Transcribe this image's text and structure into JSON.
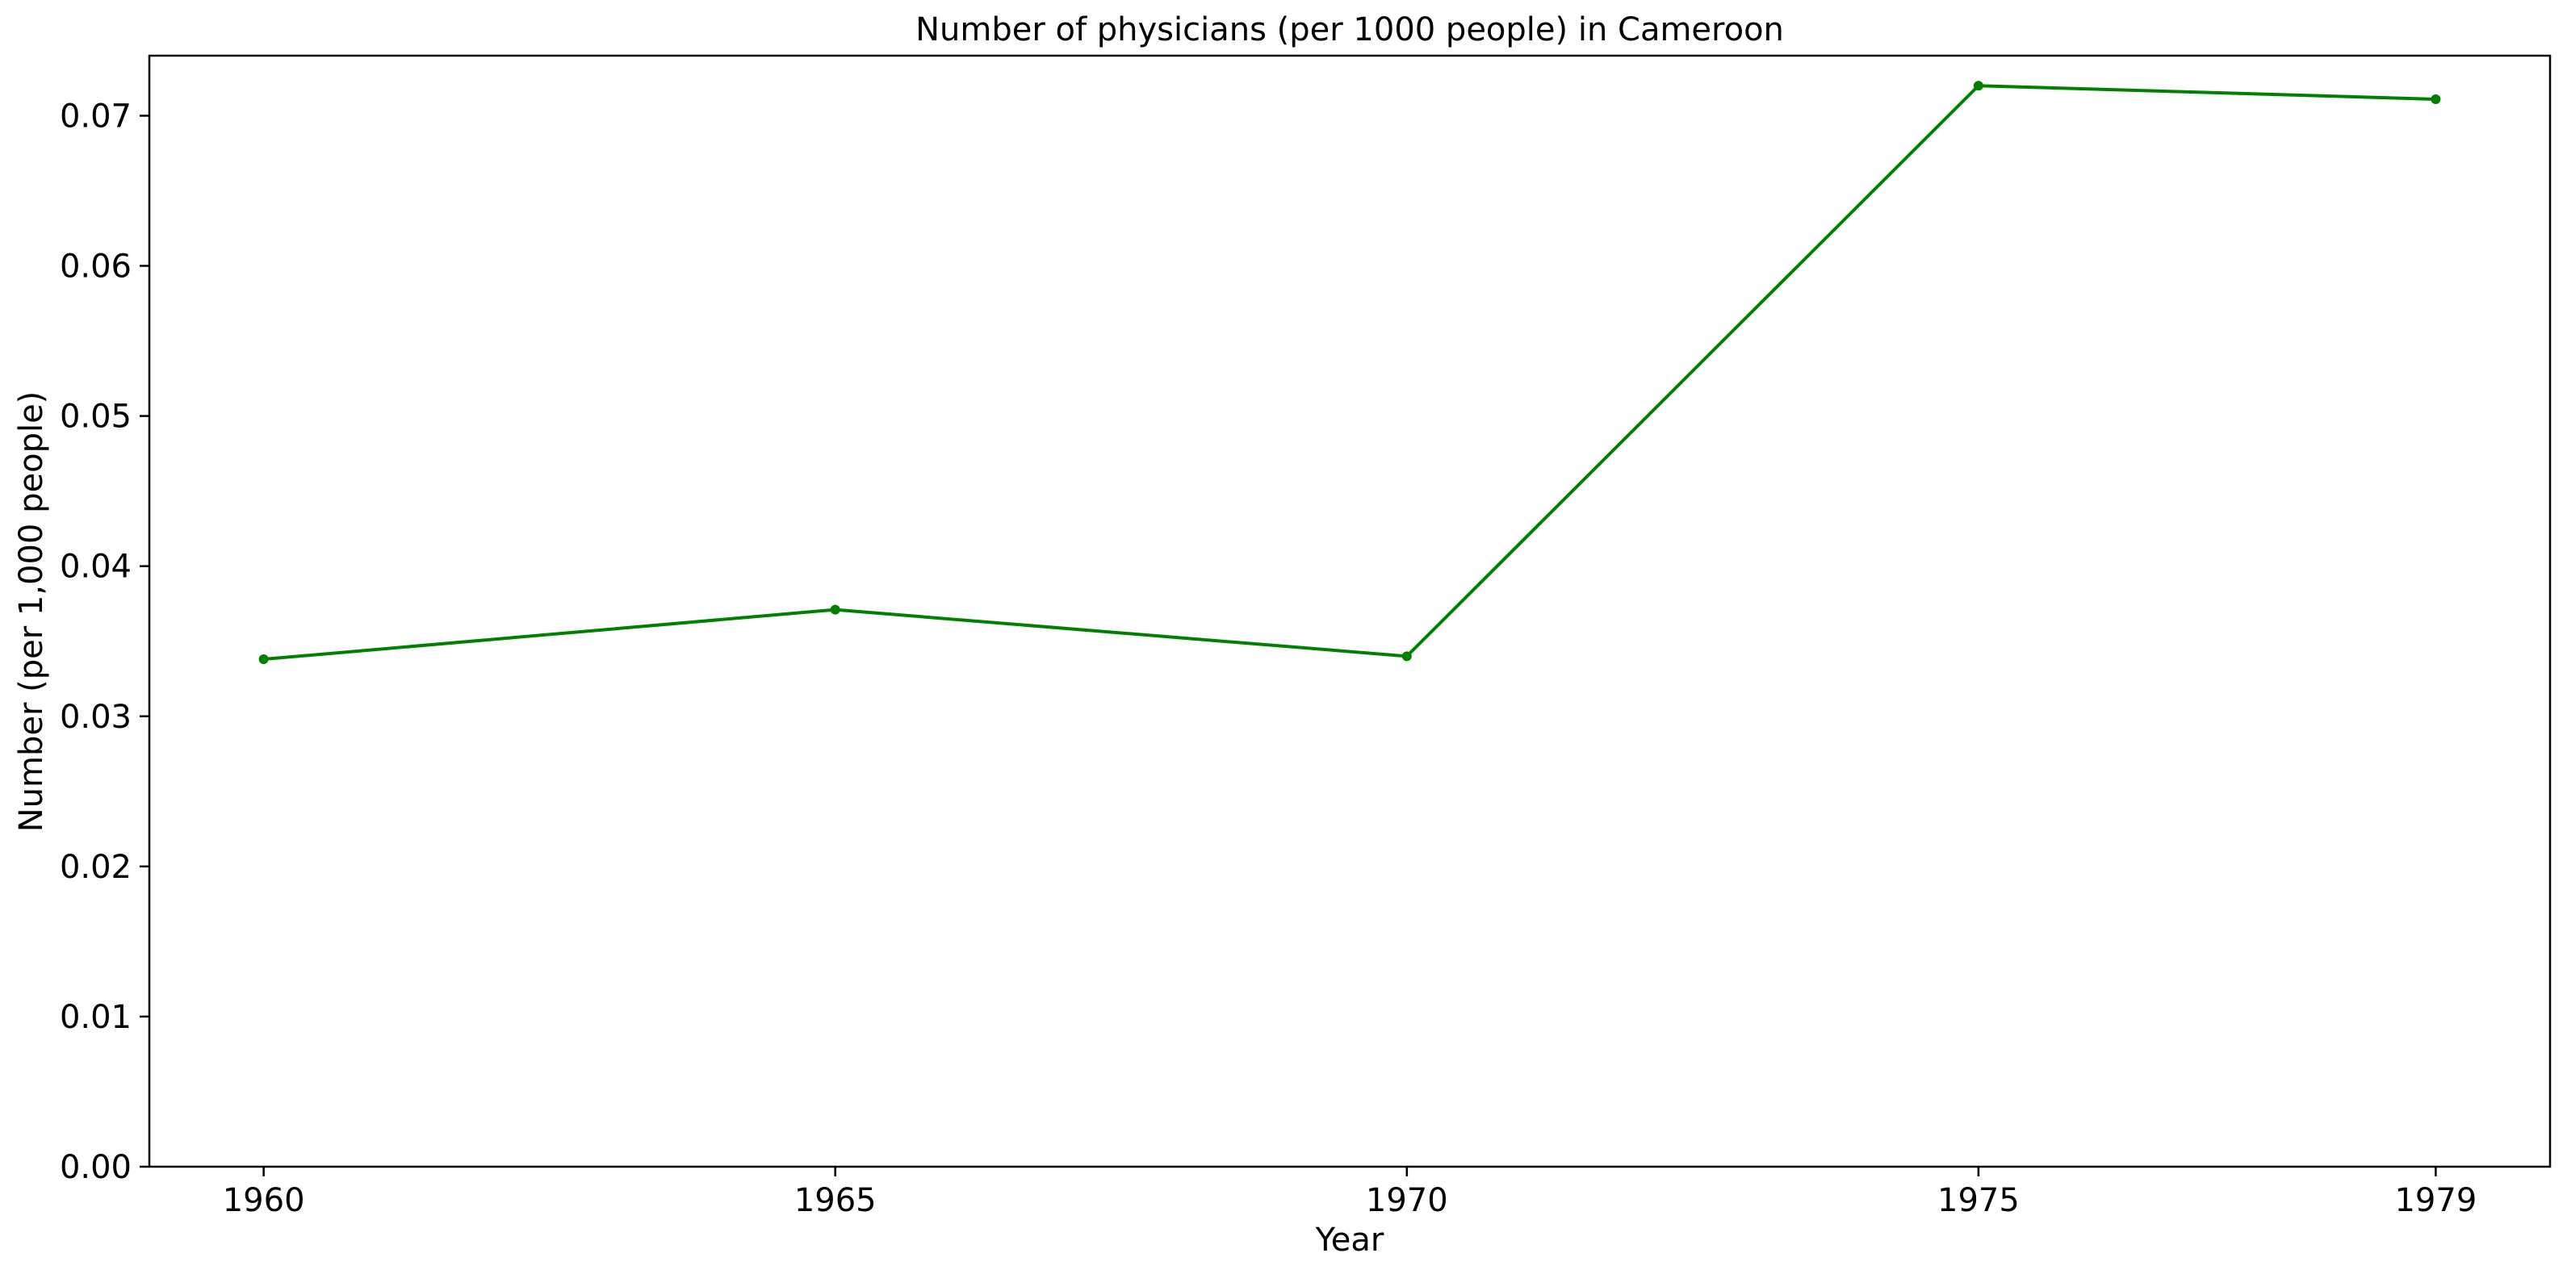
{
  "chart_data": {
    "type": "line",
    "title": "Number of physicians (per 1000 people) in Cameroon",
    "xlabel": "Year",
    "ylabel": "Number (per 1,000 people)",
    "x": [
      1960,
      1965,
      1970,
      1975,
      1979
    ],
    "x_ticks": [
      "1960",
      "1965",
      "1970",
      "1975",
      "1979"
    ],
    "y_ticks": [
      "0.00",
      "0.01",
      "0.02",
      "0.03",
      "0.04",
      "0.05",
      "0.06",
      "0.07"
    ],
    "xlim": [
      1959,
      1980
    ],
    "ylim": [
      0,
      0.074
    ],
    "grid": false,
    "series": [
      {
        "values": [
          0.0338,
          0.0371,
          0.034,
          0.072,
          0.0711
        ],
        "color": "#008000",
        "marker": "circle"
      }
    ]
  }
}
